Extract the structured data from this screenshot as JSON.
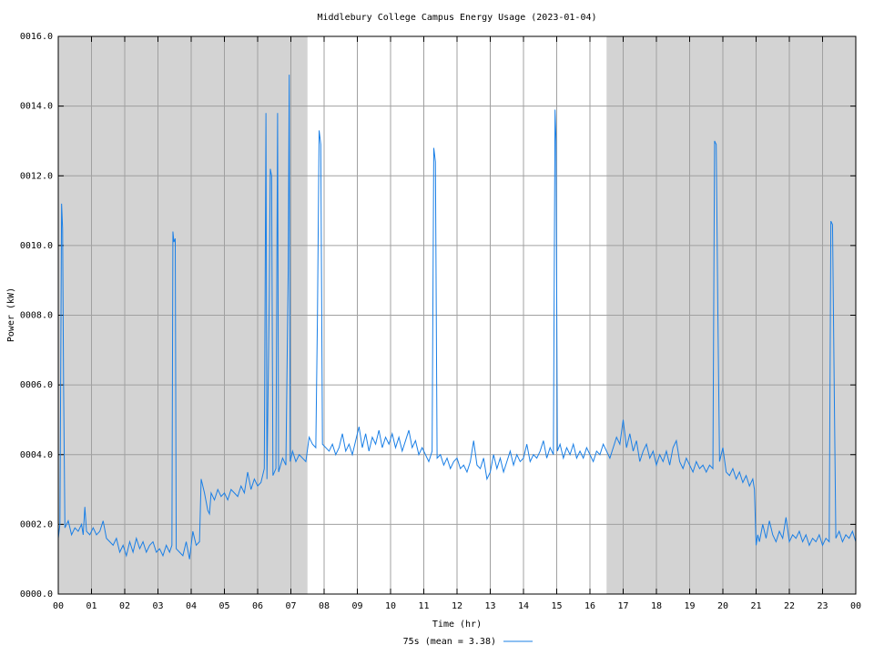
{
  "chart_data": {
    "type": "line",
    "title": "Middlebury College Campus Energy Usage (2023-01-04)",
    "xlabel": "Time (hr)",
    "ylabel": "Power (kW)",
    "xlim": [
      0,
      24
    ],
    "ylim": [
      0,
      16
    ],
    "xticks": [
      {
        "value": 0,
        "label": "00"
      },
      {
        "value": 1,
        "label": "01"
      },
      {
        "value": 2,
        "label": "02"
      },
      {
        "value": 3,
        "label": "03"
      },
      {
        "value": 4,
        "label": "04"
      },
      {
        "value": 5,
        "label": "05"
      },
      {
        "value": 6,
        "label": "06"
      },
      {
        "value": 7,
        "label": "07"
      },
      {
        "value": 8,
        "label": "08"
      },
      {
        "value": 9,
        "label": "09"
      },
      {
        "value": 10,
        "label": "10"
      },
      {
        "value": 11,
        "label": "11"
      },
      {
        "value": 12,
        "label": "12"
      },
      {
        "value": 13,
        "label": "13"
      },
      {
        "value": 14,
        "label": "14"
      },
      {
        "value": 15,
        "label": "15"
      },
      {
        "value": 16,
        "label": "16"
      },
      {
        "value": 17,
        "label": "17"
      },
      {
        "value": 18,
        "label": "18"
      },
      {
        "value": 19,
        "label": "19"
      },
      {
        "value": 20,
        "label": "20"
      },
      {
        "value": 21,
        "label": "21"
      },
      {
        "value": 22,
        "label": "22"
      },
      {
        "value": 23,
        "label": "23"
      },
      {
        "value": 24,
        "label": "00"
      }
    ],
    "yticks": [
      {
        "value": 0,
        "label": "0000.0"
      },
      {
        "value": 2,
        "label": "0002.0"
      },
      {
        "value": 4,
        "label": "0004.0"
      },
      {
        "value": 6,
        "label": "0006.0"
      },
      {
        "value": 8,
        "label": "0008.0"
      },
      {
        "value": 10,
        "label": "0010.0"
      },
      {
        "value": 12,
        "label": "0012.0"
      },
      {
        "value": 14,
        "label": "0014.0"
      },
      {
        "value": 16,
        "label": "0016.0"
      }
    ],
    "grid": true,
    "shaded_x": [
      [
        0,
        7.5
      ],
      [
        16.5,
        24
      ]
    ],
    "shade_color": "#d3d3d3",
    "x": [
      0,
      0.05,
      0.1,
      0.13,
      0.16,
      0.2,
      0.3,
      0.4,
      0.5,
      0.6,
      0.7,
      0.75,
      0.8,
      0.85,
      0.95,
      1.05,
      1.15,
      1.25,
      1.35,
      1.45,
      1.55,
      1.65,
      1.75,
      1.85,
      1.95,
      2.05,
      2.15,
      2.25,
      2.35,
      2.45,
      2.55,
      2.65,
      2.75,
      2.85,
      2.95,
      3.05,
      3.15,
      3.25,
      3.35,
      3.42,
      3.45,
      3.48,
      3.52,
      3.55,
      3.65,
      3.75,
      3.85,
      3.95,
      4.05,
      4.15,
      4.25,
      4.3,
      4.4,
      4.5,
      4.55,
      4.6,
      4.7,
      4.8,
      4.9,
      5.0,
      5.1,
      5.2,
      5.3,
      5.4,
      5.5,
      5.6,
      5.7,
      5.8,
      5.9,
      6.0,
      6.1,
      6.2,
      6.25,
      6.28,
      6.35,
      6.38,
      6.42,
      6.46,
      6.55,
      6.6,
      6.63,
      6.75,
      6.85,
      6.92,
      6.95,
      6.98,
      7.05,
      7.15,
      7.25,
      7.35,
      7.45,
      7.55,
      7.65,
      7.75,
      7.8,
      7.85,
      7.9,
      7.95,
      8.05,
      8.15,
      8.25,
      8.35,
      8.45,
      8.55,
      8.65,
      8.75,
      8.85,
      8.95,
      9.05,
      9.15,
      9.25,
      9.35,
      9.45,
      9.55,
      9.65,
      9.75,
      9.85,
      9.95,
      10.05,
      10.15,
      10.25,
      10.35,
      10.45,
      10.55,
      10.65,
      10.75,
      10.85,
      10.95,
      11.05,
      11.15,
      11.25,
      11.3,
      11.35,
      11.4,
      11.5,
      11.6,
      11.7,
      11.8,
      11.9,
      12.0,
      12.1,
      12.2,
      12.3,
      12.4,
      12.5,
      12.6,
      12.7,
      12.8,
      12.9,
      13.0,
      13.1,
      13.2,
      13.3,
      13.4,
      13.5,
      13.6,
      13.7,
      13.8,
      13.9,
      14.0,
      14.1,
      14.2,
      14.3,
      14.4,
      14.5,
      14.6,
      14.7,
      14.8,
      14.9,
      14.95,
      14.98,
      15.02,
      15.1,
      15.2,
      15.3,
      15.4,
      15.5,
      15.6,
      15.7,
      15.8,
      15.9,
      16.0,
      16.1,
      16.2,
      16.3,
      16.4,
      16.5,
      16.6,
      16.7,
      16.8,
      16.9,
      17.0,
      17.1,
      17.2,
      17.3,
      17.4,
      17.5,
      17.6,
      17.7,
      17.8,
      17.9,
      18.0,
      18.1,
      18.2,
      18.3,
      18.4,
      18.5,
      18.6,
      18.7,
      18.8,
      18.9,
      19.0,
      19.1,
      19.2,
      19.3,
      19.4,
      19.5,
      19.6,
      19.7,
      19.75,
      19.8,
      19.85,
      19.9,
      20.0,
      20.1,
      20.2,
      20.3,
      20.4,
      20.5,
      20.6,
      20.7,
      20.8,
      20.9,
      20.95,
      21.0,
      21.05,
      21.1,
      21.2,
      21.3,
      21.4,
      21.5,
      21.6,
      21.7,
      21.8,
      21.9,
      22.0,
      22.1,
      22.2,
      22.3,
      22.4,
      22.5,
      22.6,
      22.7,
      22.8,
      22.9,
      23.0,
      23.1,
      23.2,
      23.25,
      23.3,
      23.35,
      23.4,
      23.5,
      23.6,
      23.7,
      23.8,
      23.9,
      24.0
    ],
    "series": [
      {
        "name": "75s (mean = 3.38)",
        "color": "#1a7fe6",
        "values": [
          1.6,
          2.0,
          11.2,
          10.5,
          6.0,
          1.9,
          2.1,
          1.7,
          1.9,
          1.8,
          2.0,
          1.7,
          2.5,
          1.8,
          1.7,
          1.9,
          1.7,
          1.8,
          2.1,
          1.6,
          1.5,
          1.4,
          1.6,
          1.2,
          1.4,
          1.1,
          1.5,
          1.2,
          1.6,
          1.3,
          1.5,
          1.2,
          1.4,
          1.5,
          1.2,
          1.3,
          1.1,
          1.4,
          1.2,
          1.4,
          10.4,
          10.1,
          10.2,
          1.3,
          1.2,
          1.1,
          1.5,
          1.0,
          1.8,
          1.4,
          1.5,
          3.3,
          2.9,
          2.4,
          2.3,
          2.9,
          2.7,
          3.0,
          2.8,
          2.9,
          2.7,
          3.0,
          2.9,
          2.8,
          3.1,
          2.9,
          3.5,
          3.0,
          3.3,
          3.1,
          3.2,
          3.6,
          13.8,
          3.3,
          8.5,
          12.2,
          12.0,
          3.4,
          3.6,
          13.8,
          3.5,
          3.9,
          3.7,
          9.3,
          14.9,
          3.8,
          4.1,
          3.8,
          4.0,
          3.9,
          3.8,
          4.5,
          4.3,
          4.2,
          8.0,
          13.3,
          12.9,
          4.3,
          4.2,
          4.1,
          4.3,
          4.0,
          4.2,
          4.6,
          4.1,
          4.3,
          4.0,
          4.4,
          4.8,
          4.2,
          4.6,
          4.1,
          4.5,
          4.3,
          4.7,
          4.2,
          4.5,
          4.3,
          4.6,
          4.2,
          4.5,
          4.1,
          4.4,
          4.7,
          4.2,
          4.4,
          4.0,
          4.2,
          4.0,
          3.8,
          4.1,
          12.8,
          12.4,
          3.9,
          4.0,
          3.7,
          3.9,
          3.6,
          3.8,
          3.9,
          3.6,
          3.7,
          3.5,
          3.8,
          4.4,
          3.7,
          3.6,
          3.9,
          3.3,
          3.5,
          4.0,
          3.6,
          3.9,
          3.5,
          3.8,
          4.1,
          3.7,
          4.0,
          3.8,
          3.9,
          4.3,
          3.8,
          4.0,
          3.9,
          4.1,
          4.4,
          3.9,
          4.2,
          4.0,
          13.9,
          13.0,
          4.1,
          4.3,
          3.9,
          4.2,
          4.0,
          4.3,
          3.9,
          4.1,
          3.9,
          4.2,
          4.0,
          3.8,
          4.1,
          4.0,
          4.3,
          4.1,
          3.9,
          4.2,
          4.5,
          4.3,
          5.0,
          4.2,
          4.6,
          4.1,
          4.4,
          3.8,
          4.1,
          4.3,
          3.9,
          4.1,
          3.7,
          4.0,
          3.8,
          4.1,
          3.7,
          4.2,
          4.4,
          3.8,
          3.6,
          3.9,
          3.7,
          3.5,
          3.8,
          3.6,
          3.7,
          3.5,
          3.7,
          3.6,
          13.0,
          12.9,
          8.0,
          3.8,
          4.2,
          3.5,
          3.4,
          3.6,
          3.3,
          3.5,
          3.2,
          3.4,
          3.1,
          3.3,
          3.0,
          1.4,
          1.7,
          1.5,
          2.0,
          1.6,
          2.1,
          1.7,
          1.5,
          1.8,
          1.6,
          2.2,
          1.5,
          1.7,
          1.6,
          1.8,
          1.5,
          1.7,
          1.4,
          1.6,
          1.5,
          1.7,
          1.4,
          1.6,
          1.5,
          10.7,
          10.6,
          6.0,
          1.6,
          1.8,
          1.5,
          1.7,
          1.6,
          1.8,
          1.5
        ]
      }
    ]
  }
}
